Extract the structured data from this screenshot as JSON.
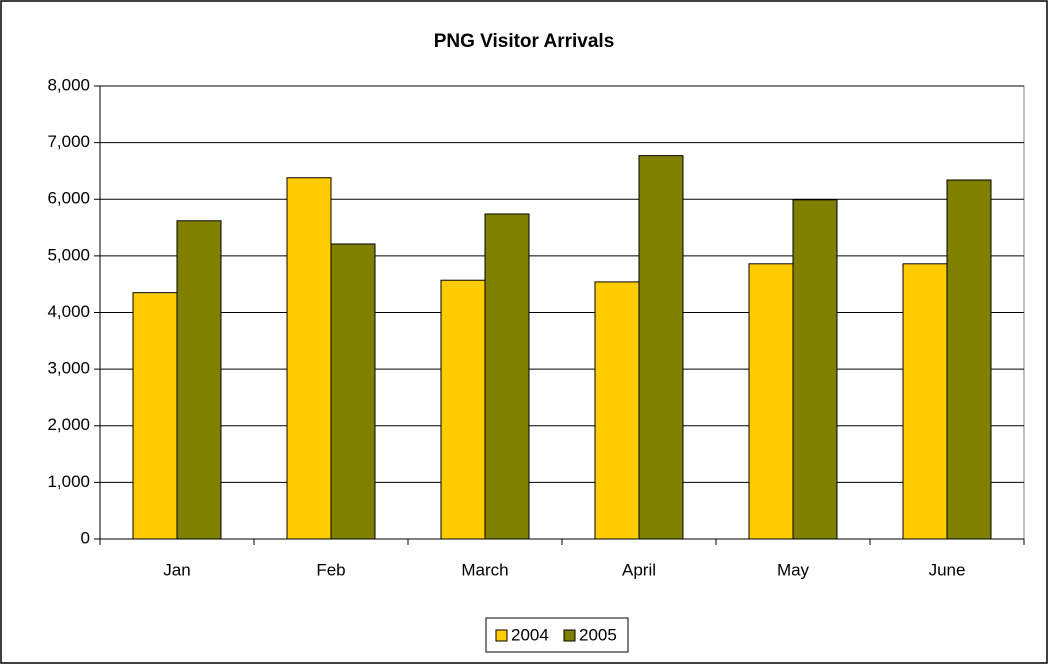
{
  "chart_data": {
    "type": "bar",
    "title": "PNG Visitor Arrivals",
    "categories": [
      "Jan",
      "Feb",
      "March",
      "April",
      "May",
      "June"
    ],
    "series": [
      {
        "name": "2004",
        "color": "#ffcc00",
        "values": [
          4350,
          6380,
          4570,
          4540,
          4860,
          4860
        ]
      },
      {
        "name": "2005",
        "color": "#808000",
        "values": [
          5620,
          5210,
          5740,
          6770,
          5990,
          6340
        ]
      }
    ],
    "ylim": [
      0,
      8000
    ],
    "yticks": [
      0,
      {
        "value": 1000,
        "label": "1,000"
      },
      {
        "value": 2000,
        "label": "2,000"
      },
      {
        "value": 3000,
        "label": "3,000"
      },
      {
        "value": 4000,
        "label": "4,000"
      },
      {
        "value": 5000,
        "label": "5,000"
      },
      {
        "value": 6000,
        "label": "6,000"
      },
      {
        "value": 7000,
        "label": "7,000"
      },
      {
        "value": 8000,
        "label": "8,000"
      }
    ],
    "grid": true,
    "legend": "bottom"
  }
}
